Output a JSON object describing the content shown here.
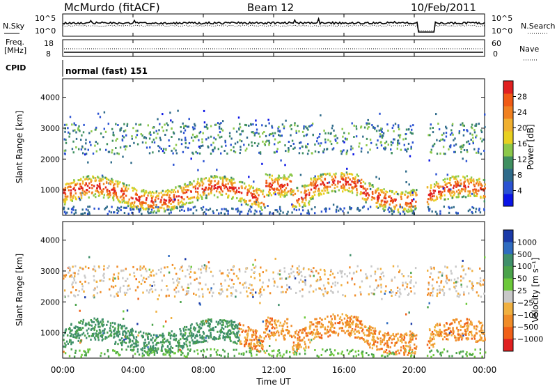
{
  "header": {
    "station": "McMurdo (fitACF)",
    "beam": "Beam 12",
    "date": "10/Feb/2011"
  },
  "panels": {
    "noise": {
      "left_label": "N.Sky",
      "right_label": "N.Search",
      "ticks": [
        "10^5",
        "10^0"
      ]
    },
    "freq": {
      "left_label_1": "Freq.",
      "left_label_2": "[MHz]",
      "left_ticks": [
        "18",
        "8"
      ],
      "right_label": "Nave",
      "right_ticks": [
        "60",
        "0"
      ]
    },
    "cpid": {
      "label": "CPID",
      "value": "normal (fast) 151"
    }
  },
  "chart_data": [
    {
      "type": "heatmap",
      "panel": "power",
      "ylabel": "Slant Range [km]",
      "y_ticks": [
        1000,
        2000,
        3000,
        4000
      ],
      "ylim": [
        180,
        4600
      ],
      "x_ticks": [
        "00:00",
        "04:00",
        "08:00",
        "12:00",
        "16:00",
        "20:00",
        "00:00"
      ],
      "xlim_hours": [
        0,
        24
      ],
      "colorbar": {
        "label": "Power [dB]",
        "ticks": [
          "4",
          "8",
          "12",
          "16",
          "20",
          "24",
          "28"
        ],
        "colors": [
          "#0a14e6",
          "#2a52d2",
          "#2f6b8a",
          "#3f8f60",
          "#8cc84a",
          "#e8d020",
          "#f0b030",
          "#f08020",
          "#f05a14",
          "#e02020"
        ]
      }
    },
    {
      "type": "heatmap",
      "panel": "velocity",
      "ylabel": "Slant Range [km]",
      "y_ticks": [
        1000,
        2000,
        3000,
        4000
      ],
      "ylim": [
        180,
        4600
      ],
      "x_ticks": [
        "00:00",
        "04:00",
        "08:00",
        "12:00",
        "16:00",
        "20:00",
        "00:00"
      ],
      "xlabel": "Time UT",
      "colorbar": {
        "label": "Velocity [m s⁻¹]",
        "ticks": [
          "1000",
          "500",
          "100",
          "50",
          "25",
          "−25",
          "−100",
          "−500",
          "−1000"
        ],
        "colors": [
          "#1a3aa8",
          "#2f6cc0",
          "#3f8f6a",
          "#4aa24a",
          "#6cc83a",
          "#c8c8c8",
          "#f0b040",
          "#f08c28",
          "#f06018",
          "#e02020"
        ]
      }
    }
  ]
}
